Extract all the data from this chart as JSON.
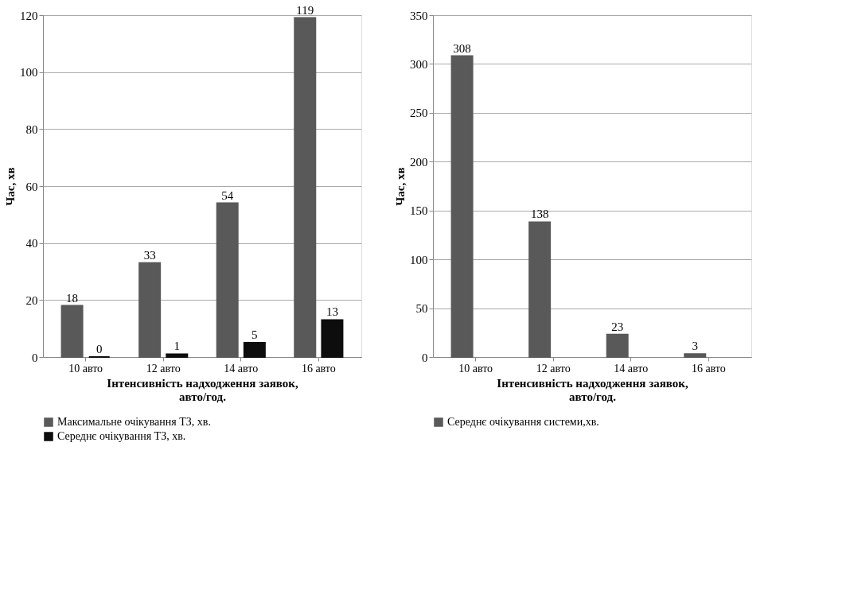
{
  "chart_data": [
    {
      "type": "bar",
      "categories": [
        "10 авто",
        "12 авто",
        "14 авто",
        "16 авто"
      ],
      "xlabel": "Інтенсивність надходження заявок, авто/год.",
      "ylabel": "Час, хв",
      "ylim": [
        0,
        120
      ],
      "yticks": [
        0,
        20,
        40,
        60,
        80,
        100,
        120
      ],
      "grid": "y",
      "legend": "bottom",
      "data_labels": true,
      "series": [
        {
          "name": "Максимальне очікування ТЗ, хв.",
          "color": "#595959",
          "values": [
            18,
            33,
            54,
            119
          ]
        },
        {
          "name": "Середнє очікування ТЗ, хв.",
          "color": "#0d0d0d",
          "values": [
            0,
            1,
            5,
            13
          ]
        }
      ]
    },
    {
      "type": "bar",
      "categories": [
        "10 авто",
        "12 авто",
        "14 авто",
        "16 авто"
      ],
      "xlabel": "Інтенсивність надходження заявок, авто/год.",
      "ylabel": "Час, хв",
      "ylim": [
        0,
        350
      ],
      "yticks": [
        0,
        50,
        100,
        150,
        200,
        250,
        300,
        350
      ],
      "grid": "y",
      "legend": "bottom",
      "data_labels": true,
      "series": [
        {
          "name": "Середнє очікування системи,хв.",
          "color": "#595959",
          "values": [
            308,
            138,
            23,
            3
          ]
        }
      ]
    }
  ]
}
